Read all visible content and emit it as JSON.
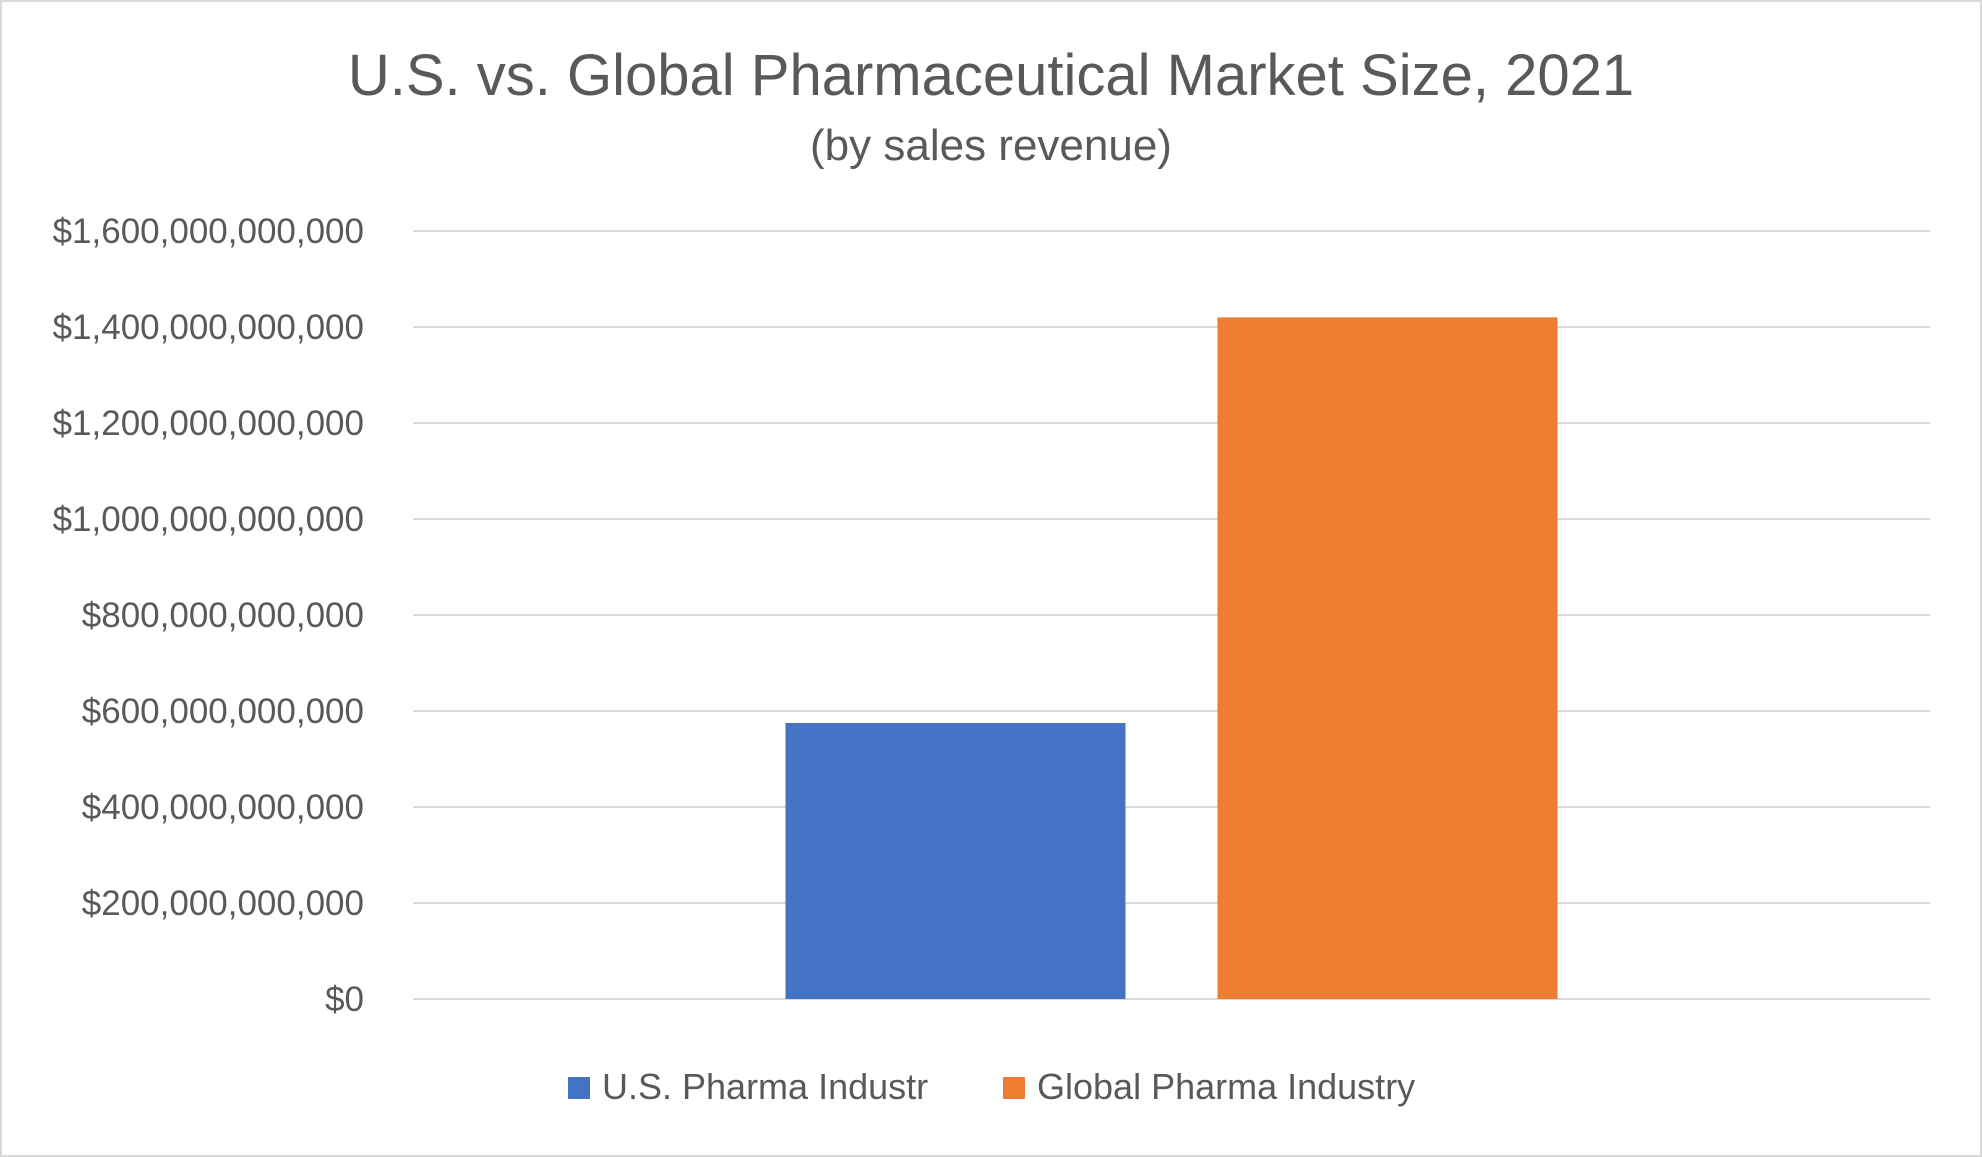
{
  "chart_data": {
    "type": "bar",
    "title": "U.S. vs. Global Pharmaceutical Market Size, 2021",
    "subtitle": "(by sales revenue)",
    "categories": [
      ""
    ],
    "series": [
      {
        "name": "U.S. Pharma Industr",
        "values": [
          575000000000
        ],
        "color": "#4472C4"
      },
      {
        "name": "Global Pharma Industry",
        "values": [
          1420000000000
        ],
        "color": "#ED7D31"
      }
    ],
    "ylim": [
      0,
      1600000000000
    ],
    "yticks": [
      0,
      200000000000,
      400000000000,
      600000000000,
      800000000000,
      1000000000000,
      1200000000000,
      1400000000000,
      1600000000000
    ],
    "ytick_labels": [
      "$0",
      "$200,000,000,000",
      "$400,000,000,000",
      "$600,000,000,000",
      "$800,000,000,000",
      "$1,000,000,000,000",
      "$1,200,000,000,000",
      "$1,400,000,000,000",
      "$1,600,000,000,000"
    ],
    "xlabel": "",
    "ylabel": "",
    "grid": true,
    "legend_position": "bottom"
  }
}
